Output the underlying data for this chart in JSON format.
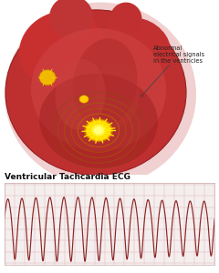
{
  "title": "Ventricular Tachcardia ECG",
  "title_fontsize": 6.5,
  "title_fontweight": "bold",
  "ecg_color": "#8B2525",
  "ecg_bg_color": "#f5eeee",
  "ecg_grid_color": "#e0b8b8",
  "annotation_text": "Abnormal\nelectrical signals\nin the ventricles",
  "annotation_fontsize": 4.8,
  "num_cycles": 15,
  "ecg_amplitude": 0.72
}
